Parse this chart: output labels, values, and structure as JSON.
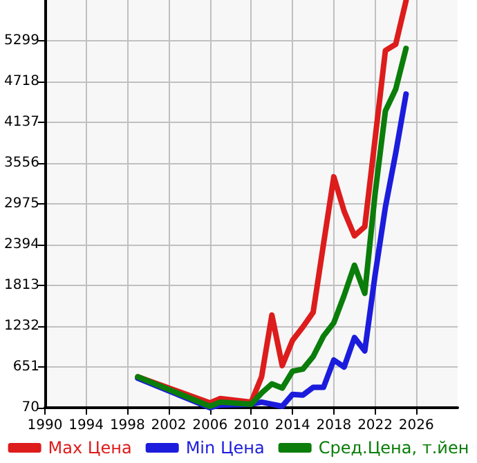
{
  "chart_data": {
    "type": "line",
    "x": [
      1999,
      2006,
      2007,
      2010,
      2011,
      2012,
      2013,
      2014,
      2015,
      2016,
      2017,
      2018,
      2019,
      2020,
      2021,
      2022,
      2023,
      2024,
      2025
    ],
    "series": [
      {
        "name": "Max Цена",
        "color": "#dd1c1c",
        "values": [
          510,
          140,
          200,
          150,
          510,
          1390,
          670,
          1030,
          1220,
          1430,
          2400,
          3360,
          2870,
          2520,
          2650,
          3900,
          5160,
          5250,
          5870
        ]
      },
      {
        "name": "Min Цена",
        "color": "#1c1cdd",
        "values": [
          490,
          70,
          110,
          120,
          150,
          120,
          90,
          260,
          250,
          360,
          360,
          750,
          650,
          1070,
          880,
          1960,
          2930,
          3700,
          4540
        ]
      },
      {
        "name": "Сред.Цена, т.йен",
        "color": "#0a7d0a",
        "values": [
          510,
          90,
          150,
          120,
          280,
          410,
          350,
          590,
          620,
          800,
          1090,
          1280,
          1670,
          2100,
          1700,
          3120,
          4300,
          4610,
          5190
        ]
      }
    ],
    "xlim": [
      1990,
      2030
    ],
    "xticks": [
      1990,
      1994,
      1998,
      2002,
      2006,
      2010,
      2014,
      2018,
      2022,
      2026
    ],
    "ylim": [
      70,
      5880
    ],
    "yticks": [
      70,
      651,
      1232,
      1813,
      2394,
      2975,
      3556,
      4137,
      4718,
      5299
    ],
    "grid": true,
    "legend": "bottom",
    "marker": "none",
    "line_style": "solid"
  }
}
